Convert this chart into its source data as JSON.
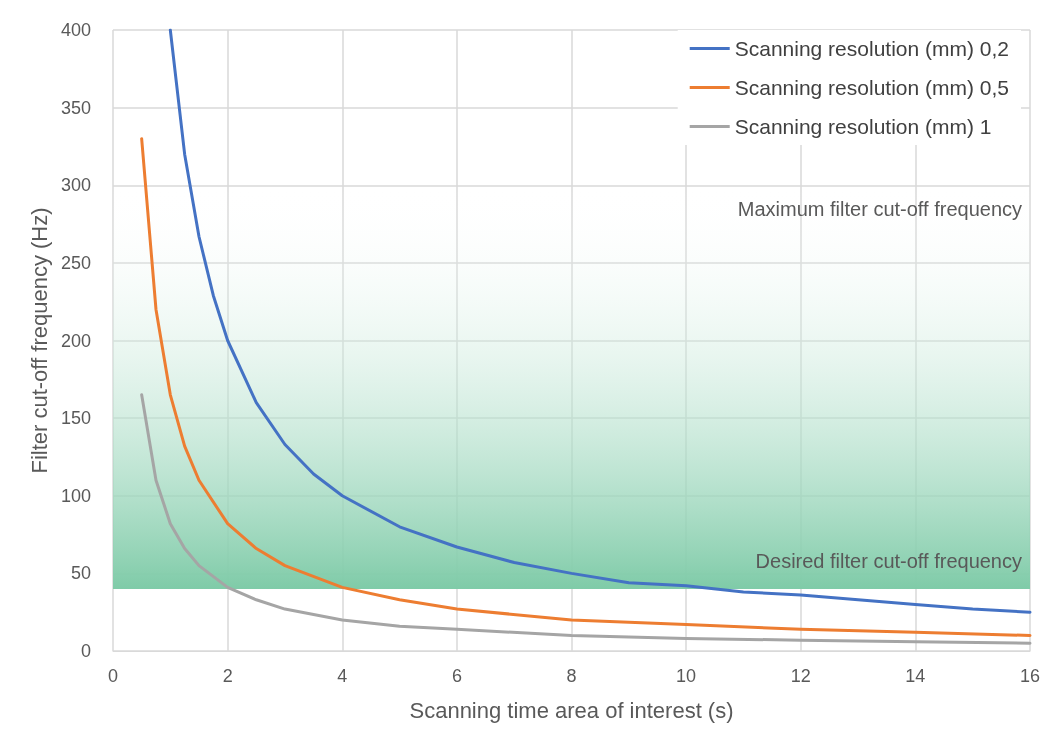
{
  "chart_data": {
    "type": "line",
    "xlabel": "Scanning time area of interest (s)",
    "ylabel": "Filter cut-off frequency (Hz)",
    "xlim": [
      0,
      16
    ],
    "xticks": [
      0,
      2,
      4,
      6,
      8,
      10,
      12,
      14,
      16
    ],
    "ylim": [
      0,
      400
    ],
    "yticks": [
      0,
      50,
      100,
      150,
      200,
      250,
      300,
      350,
      400
    ],
    "grid": true,
    "legend": "top right",
    "marker": "none",
    "line_style": "solid",
    "series": [
      {
        "name": "Scanning resolution (mm) 0,2",
        "color": "#4472c4",
        "x": [
          1,
          1.25,
          1.5,
          1.75,
          2,
          2.5,
          3,
          3.5,
          4,
          5,
          6,
          7,
          8,
          9,
          10,
          11,
          12,
          13,
          14,
          15,
          16
        ],
        "values": [
          400,
          320,
          267,
          229,
          200,
          160,
          133,
          114,
          100,
          80,
          67,
          57,
          50,
          44,
          42,
          38,
          36,
          33,
          30,
          27,
          25
        ]
      },
      {
        "name": "Scanning resolution (mm) 0,5",
        "color": "#ed7d31",
        "x": [
          0.5,
          0.75,
          1,
          1.25,
          1.5,
          2,
          2.5,
          3,
          4,
          5,
          6,
          8,
          10,
          12,
          14,
          16
        ],
        "values": [
          330,
          220,
          165,
          132,
          110,
          82,
          66,
          55,
          41,
          33,
          27,
          20,
          17,
          14,
          12,
          10
        ]
      },
      {
        "name": "Scanning resolution (mm) 1",
        "color": "#a5a5a5",
        "x": [
          0.5,
          0.75,
          1,
          1.25,
          1.5,
          2,
          2.5,
          3,
          4,
          5,
          6,
          8,
          10,
          12,
          14,
          16
        ],
        "values": [
          165,
          110,
          82,
          66,
          55,
          41,
          33,
          27,
          20,
          16,
          14,
          10,
          8,
          7,
          6,
          5
        ]
      }
    ],
    "bands": [
      {
        "axis": "y",
        "from": 40,
        "to": 300,
        "color": "#7fcba8"
      }
    ],
    "annotations": [
      {
        "text": "Maximum filter cut-off frequency",
        "x": 16,
        "y": 285
      },
      {
        "text": "Desired filter cut-off frequency",
        "x": 16,
        "y": 58
      }
    ]
  }
}
